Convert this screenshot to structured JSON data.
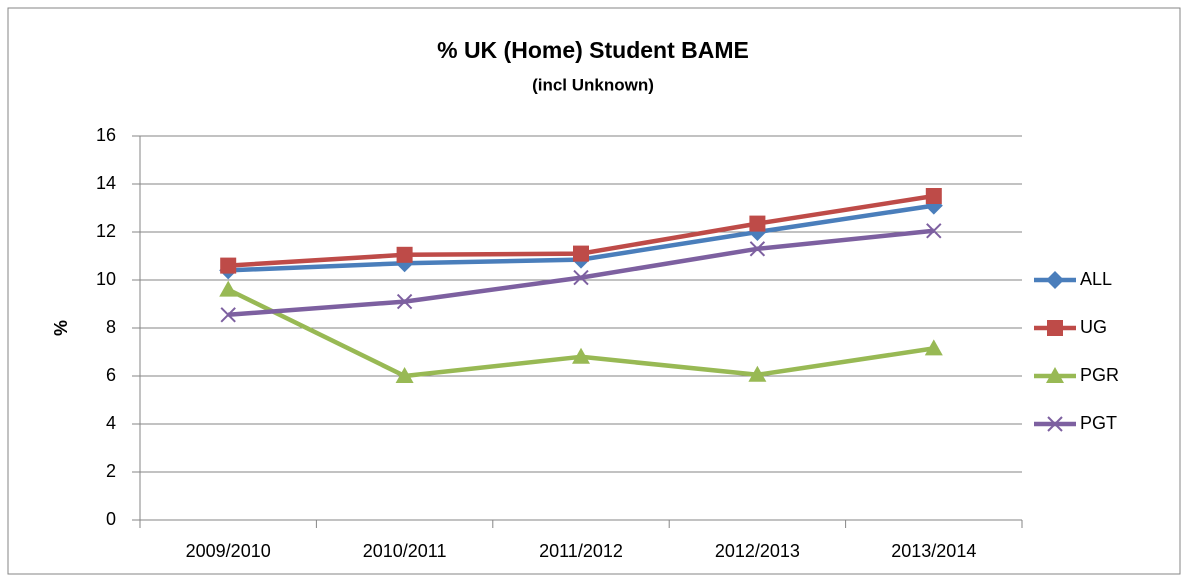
{
  "chart_data": {
    "type": "line",
    "title": "% UK (Home) Student BAME",
    "subtitle": "(incl Unknown)",
    "y_label": "%",
    "categories": [
      "2009/2010",
      "2010/2011",
      "2011/2012",
      "2012/2013",
      "2013/2014"
    ],
    "series": [
      {
        "name": "ALL",
        "color": "#4a7ebb",
        "marker": "diamond",
        "values": [
          10.4,
          10.7,
          10.85,
          12.0,
          13.1
        ]
      },
      {
        "name": "UG",
        "color": "#be4b48",
        "marker": "square",
        "values": [
          10.6,
          11.05,
          11.1,
          12.35,
          13.5
        ]
      },
      {
        "name": "PGR",
        "color": "#98b954",
        "marker": "triangle",
        "values": [
          9.6,
          6.0,
          6.8,
          6.05,
          7.15
        ]
      },
      {
        "name": "PGT",
        "color": "#7d60a0",
        "marker": "x",
        "values": [
          8.55,
          9.1,
          10.1,
          11.3,
          12.05
        ]
      }
    ],
    "ylim": [
      0,
      16
    ],
    "yticks": [
      0,
      2,
      4,
      6,
      8,
      10,
      12,
      14,
      16
    ],
    "grid": true,
    "legend": "right"
  }
}
